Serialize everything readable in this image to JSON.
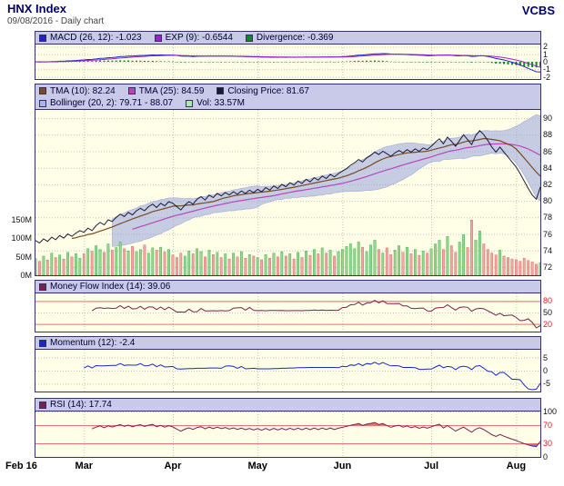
{
  "header": {
    "title": "HNX Index",
    "subtitle": "09/08/2016 - Daily chart",
    "brand": "VCBS"
  },
  "colors": {
    "grid": "#c0c0c0",
    "border": "#333366",
    "panel_bg": "#ffffe8",
    "legend_bg": "#c9c9ea",
    "title": "#000066",
    "macd": "#2222cc",
    "signal": "#9922cc",
    "histogram": "#118822",
    "close": "#1a1a38",
    "tma10": "#7a4a22",
    "tma25": "#bb44bb",
    "bollinger_fill": "#98a2dc",
    "bollinger_edge": "#8890cc",
    "vol_up": "#8fd98f",
    "vol_up_edge": "#3f9f3f",
    "vol_down": "#f5a3a3",
    "vol_down_edge": "#cc5c5c",
    "mfi": "#7a2050",
    "momentum": "#1828c8",
    "rsi": "#7a2050",
    "threshold": "#e87474",
    "fill_red": "#ee3333",
    "fill_blue": "#4444ee"
  },
  "panels": {
    "macd": {
      "legend": [
        {
          "label": "MACD (26, 12): -1.023",
          "color": "#2222cc"
        },
        {
          "label": "EXP (9): -0.6544",
          "color": "#9922cc"
        },
        {
          "label": "Divergence: -0.369",
          "color": "#118822"
        }
      ],
      "range": [
        -2.3,
        2.3
      ],
      "ticks": [
        {
          "v": 2,
          "t": "2"
        },
        {
          "v": 1,
          "t": "1"
        },
        {
          "v": 0,
          "t": "0"
        },
        {
          "v": -1,
          "t": "-1"
        },
        {
          "v": -2,
          "t": "-2"
        }
      ]
    },
    "price": {
      "legend1": [
        {
          "label": "TMA (10): 82.24",
          "color": "#7a4a22"
        },
        {
          "label": "TMA (25): 84.59",
          "color": "#bb44bb"
        },
        {
          "label": "Closing Price: 81.67",
          "color": "#1a1a38"
        }
      ],
      "legend2": [
        {
          "label": "Bollinger (20, 2): 79.71 - 88.07",
          "color": "#aab4ec"
        },
        {
          "label": "Vol: 33.57M",
          "color": "#a8e8a8"
        }
      ],
      "range": [
        71,
        91
      ],
      "ticks": [
        {
          "v": 90,
          "t": "90"
        },
        {
          "v": 88,
          "t": "88"
        },
        {
          "v": 86,
          "t": "86"
        },
        {
          "v": 84,
          "t": "84"
        },
        {
          "v": 82,
          "t": "82"
        },
        {
          "v": 80,
          "t": "80"
        },
        {
          "v": 78,
          "t": "78"
        },
        {
          "v": 76,
          "t": "76"
        },
        {
          "v": 74,
          "t": "74"
        },
        {
          "v": 72,
          "t": "72"
        }
      ],
      "vol_ticks": [
        {
          "v": 150,
          "t": "150M"
        },
        {
          "v": 100,
          "t": "100M"
        },
        {
          "v": 50,
          "t": "50M"
        },
        {
          "v": 0,
          "t": "0M"
        }
      ],
      "vol_max": 160
    },
    "mfi": {
      "legend": [
        {
          "label": "Money Flow Index (14): 39.06",
          "color": "#7a2050"
        }
      ],
      "range": [
        0,
        100
      ],
      "ticks": [
        {
          "v": 80,
          "t": "80",
          "c": 1
        },
        {
          "v": 50,
          "t": "50"
        },
        {
          "v": 20,
          "t": "20",
          "c": 1
        }
      ],
      "thresholds": [
        80,
        20
      ]
    },
    "momentum": {
      "legend": [
        {
          "label": "Momentum (12): -2.4",
          "color": "#1828c8"
        }
      ],
      "range": [
        -8,
        8
      ],
      "ticks": [
        {
          "v": 5,
          "t": "5"
        },
        {
          "v": 0,
          "t": "0"
        },
        {
          "v": -5,
          "t": "-5"
        }
      ],
      "thresholds": []
    },
    "rsi": {
      "legend": [
        {
          "label": "RSI (14): 17.74",
          "color": "#7a2050"
        }
      ],
      "range": [
        0,
        100
      ],
      "ticks": [
        {
          "v": 100,
          "t": "100"
        },
        {
          "v": 70,
          "t": "70",
          "c": 1
        },
        {
          "v": 30,
          "t": "30",
          "c": 1
        },
        {
          "v": 0,
          "t": "0"
        }
      ],
      "thresholds": [
        70,
        30
      ]
    }
  },
  "chart_data": {
    "type": "line",
    "title": "HNX Index - 09/08/2016 - Daily chart",
    "x_ticks": [
      {
        "label": "Feb 16",
        "index": 0
      },
      {
        "label": "Mar",
        "index": 12
      },
      {
        "label": "Apr",
        "index": 34
      },
      {
        "label": "May",
        "index": 55
      },
      {
        "label": "Jun",
        "index": 76
      },
      {
        "label": "Jul",
        "index": 98
      },
      {
        "label": "Aug",
        "index": 119
      }
    ],
    "price_axis_range": [
      72,
      90
    ],
    "volume_axis_max_millions": 160,
    "grid": true,
    "series": [
      {
        "name": "close",
        "values": [
          75.2,
          74.9,
          75.4,
          75.1,
          75.6,
          75.3,
          75.8,
          75.5,
          76.0,
          75.7,
          76.1,
          76.4,
          76.2,
          76.7,
          76.4,
          77.0,
          77.4,
          77.1,
          77.7,
          77.5,
          78.0,
          78.4,
          78.1,
          78.6,
          78.3,
          78.8,
          79.1,
          78.8,
          79.3,
          79.6,
          79.2,
          79.7,
          79.4,
          79.9,
          79.7,
          79.3,
          78.9,
          79.5,
          79.9,
          79.6,
          80.2,
          80.5,
          80.1,
          80.7,
          80.4,
          80.9,
          80.6,
          81.0,
          80.7,
          81.1,
          80.8,
          81.2,
          80.9,
          81.3,
          81.0,
          81.4,
          81.1,
          81.6,
          81.3,
          81.8,
          81.5,
          82.0,
          81.7,
          82.2,
          81.9,
          82.4,
          82.1,
          82.6,
          82.3,
          82.8,
          82.5,
          83.0,
          82.7,
          83.2,
          82.9,
          83.3,
          83.6,
          83.9,
          84.3,
          84.6,
          85.0,
          84.7,
          85.2,
          85.5,
          85.9,
          85.6,
          86.0,
          85.7,
          85.4,
          85.8,
          86.1,
          85.8,
          86.2,
          85.9,
          86.3,
          86.0,
          86.4,
          86.2,
          86.6,
          87.1,
          87.5,
          86.9,
          87.7,
          87.2,
          86.6,
          87.3,
          88.0,
          87.4,
          86.8,
          87.9,
          88.5,
          88.0,
          87.3,
          86.5,
          85.9,
          86.5,
          85.9,
          85.3,
          84.7,
          84.1,
          83.3,
          82.4,
          81.5,
          80.7,
          80.2,
          81.67
        ]
      },
      {
        "name": "volume_millions",
        "values": [
          45,
          38,
          52,
          41,
          60,
          48,
          55,
          44,
          62,
          50,
          58,
          46,
          58,
          72,
          65,
          80,
          70,
          62,
          85,
          68,
          75,
          90,
          72,
          66,
          78,
          64,
          70,
          82,
          60,
          74,
          68,
          76,
          63,
          70,
          55,
          48,
          60,
          52,
          66,
          58,
          72,
          64,
          50,
          68,
          56,
          62,
          48,
          58,
          44,
          60,
          50,
          64,
          46,
          56,
          52,
          48,
          42,
          56,
          46,
          60,
          50,
          64,
          52,
          58,
          44,
          62,
          48,
          66,
          54,
          70,
          58,
          74,
          60,
          68,
          52,
          64,
          70,
          78,
          85,
          72,
          90,
          76,
          64,
          82,
          95,
          70,
          60,
          74,
          56,
          68,
          80,
          62,
          76,
          58,
          70,
          54,
          66,
          60,
          72,
          85,
          95,
          70,
          105,
          80,
          62,
          90,
          110,
          75,
          150,
          95,
          120,
          85,
          70,
          60,
          55,
          68,
          52,
          48,
          44,
          42,
          38,
          46,
          40,
          36,
          30,
          33.57
        ]
      }
    ],
    "current_values": {
      "macd_26_12": -1.023,
      "exp_9": -0.6544,
      "divergence": -0.369,
      "tma_10": 82.24,
      "tma_25": 84.59,
      "closing_price": 81.67,
      "bollinger_20_2": "79.71 - 88.07",
      "volume": "33.57M",
      "money_flow_index_14": 39.06,
      "momentum_12": -2.4,
      "rsi_14": 17.74
    }
  }
}
